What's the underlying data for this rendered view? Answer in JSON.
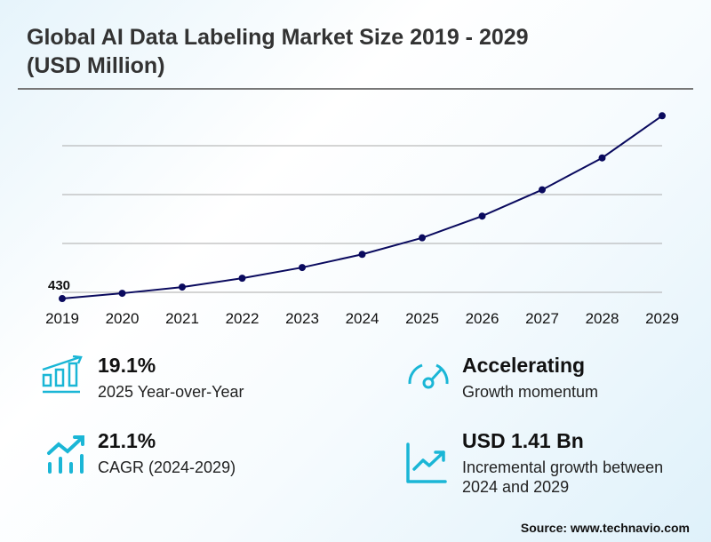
{
  "header": {
    "title": "Global AI Data Labeling Market Size 2019 - 2029 (USD Million)"
  },
  "chart_data": {
    "type": "line",
    "title": "Global AI Data Labeling Market Size 2019 - 2029 (USD Million)",
    "xlabel": "",
    "ylabel": "USD Million",
    "categories": [
      "2019",
      "2020",
      "2021",
      "2022",
      "2023",
      "2024",
      "2025",
      "2026",
      "2027",
      "2028",
      "2029"
    ],
    "series": [
      {
        "name": "Market Size",
        "values": [
          430,
          484,
          547,
          637,
          746,
          880,
          1048,
          1269,
          1537,
          1861,
          2290
        ]
      }
    ],
    "data_labels": [
      {
        "index": 0,
        "text": "430"
      }
    ],
    "ylim": [
      349,
      2419
    ],
    "grid": true,
    "line_color": "#0a0a5e"
  },
  "stats": [
    {
      "value": "19.1%",
      "label": "2025 Year-over-Year",
      "icon": "bar-chart-growth-icon"
    },
    {
      "value": "Accelerating",
      "label": "Growth momentum",
      "icon": "gauge-icon"
    },
    {
      "value": "21.1%",
      "label": "CAGR (2024-2029)",
      "icon": "trend-bars-icon"
    },
    {
      "value": "USD 1.41 Bn",
      "label": "Incremental growth between 2024 and 2029",
      "icon": "line-chart-up-icon"
    }
  ],
  "accent": "#1ab6d6",
  "footer": {
    "source": "Source: www.technavio.com"
  }
}
